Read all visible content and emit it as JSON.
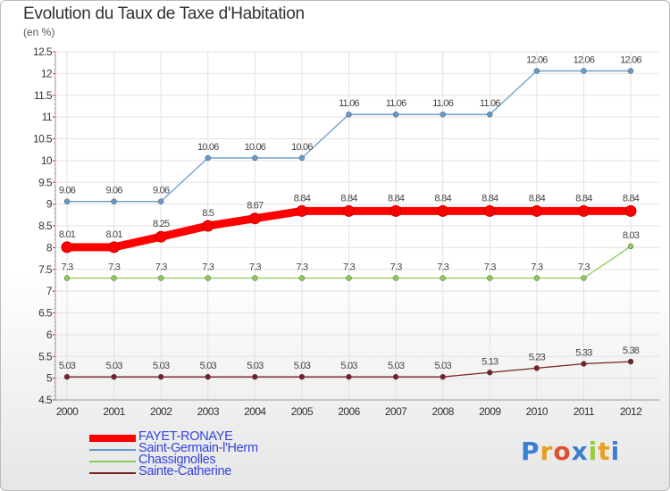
{
  "chart_data": {
    "type": "line",
    "title": "Evolution du Taux de Taxe d'Habitation",
    "unit": "(en %)",
    "x": [
      "2000",
      "2001",
      "2002",
      "2003",
      "2004",
      "2005",
      "2006",
      "2007",
      "2008",
      "2009",
      "2010",
      "2011",
      "2012"
    ],
    "ylim": [
      4.5,
      12.5
    ],
    "yticks": [
      "4.5",
      "5",
      "5.5",
      "6",
      "6.5",
      "7",
      "7.5",
      "8",
      "8.5",
      "9",
      "9.5",
      "10",
      "10.5",
      "11",
      "11.5",
      "12",
      "12.5"
    ],
    "grid": true,
    "legend_position": "bottom-left",
    "series": [
      {
        "name": "FAYET-RONAYE",
        "color": "#ff0000",
        "values": [
          8.01,
          8.01,
          8.25,
          8.5,
          8.67,
          8.84,
          8.84,
          8.84,
          8.84,
          8.84,
          8.84,
          8.84,
          8.84
        ],
        "labels": [
          "8.01",
          "8.01",
          "8.25",
          "8.5",
          "8.67",
          "8.84",
          "8.84",
          "8.84",
          "8.84",
          "8.84",
          "8.84",
          "8.84",
          "8.84"
        ]
      },
      {
        "name": "Saint-Germain-l'Herm",
        "color": "#6699cc",
        "values": [
          9.06,
          9.06,
          9.06,
          10.06,
          10.06,
          10.06,
          11.06,
          11.06,
          11.06,
          11.06,
          12.06,
          12.06,
          12.06
        ],
        "labels": [
          "9.06",
          "9.06",
          "9.06",
          "10.06",
          "10.06",
          "10.06",
          "11.06",
          "11.06",
          "11.06",
          "11.06",
          "12.06",
          "12.06",
          "12.06"
        ]
      },
      {
        "name": "Chassignolles",
        "color": "#88cc55",
        "values": [
          7.3,
          7.3,
          7.3,
          7.3,
          7.3,
          7.3,
          7.3,
          7.3,
          7.3,
          7.3,
          7.3,
          7.3,
          8.03
        ],
        "labels": [
          "7.3",
          "7.3",
          "7.3",
          "7.3",
          "7.3",
          "7.3",
          "7.3",
          "7.3",
          "7.3",
          "7.3",
          "7.3",
          "7.3",
          "8.03"
        ]
      },
      {
        "name": "Sainte-Catherine",
        "color": "#772222",
        "values": [
          5.03,
          5.03,
          5.03,
          5.03,
          5.03,
          5.03,
          5.03,
          5.03,
          5.03,
          5.13,
          5.23,
          5.33,
          5.38
        ],
        "labels": [
          "5.03",
          "5.03",
          "5.03",
          "5.03",
          "5.03",
          "5.03",
          "5.03",
          "5.03",
          "5.03",
          "5.13",
          "5.23",
          "5.33",
          "5.38"
        ]
      }
    ]
  },
  "logo": {
    "text": "Proxiti"
  }
}
